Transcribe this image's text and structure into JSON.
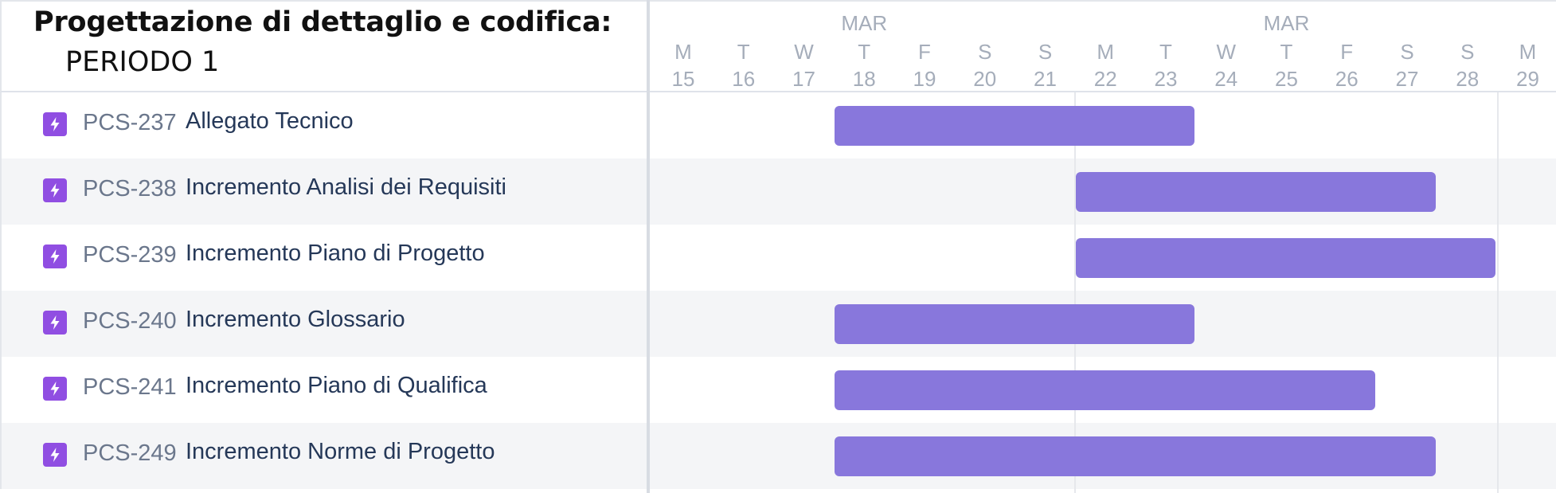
{
  "title": "Progettazione di dettaglio e codifica:",
  "subtitle": "PERIODO 1",
  "accent_color": "#8877dc",
  "icon_color": "#904ee2",
  "timeline": {
    "months": [
      "MAR",
      "MAR"
    ],
    "days": [
      {
        "dow": "M",
        "date": "15"
      },
      {
        "dow": "T",
        "date": "16"
      },
      {
        "dow": "W",
        "date": "17"
      },
      {
        "dow": "T",
        "date": "18"
      },
      {
        "dow": "F",
        "date": "19"
      },
      {
        "dow": "S",
        "date": "20"
      },
      {
        "dow": "S",
        "date": "21"
      },
      {
        "dow": "M",
        "date": "22"
      },
      {
        "dow": "T",
        "date": "23"
      },
      {
        "dow": "W",
        "date": "24"
      },
      {
        "dow": "T",
        "date": "25"
      },
      {
        "dow": "F",
        "date": "26"
      },
      {
        "dow": "S",
        "date": "27"
      },
      {
        "dow": "S",
        "date": "28"
      },
      {
        "dow": "M",
        "date": "29"
      }
    ]
  },
  "tasks": [
    {
      "icon": "lightning-icon",
      "key": "PCS-237",
      "summary": "Allegato Tecnico",
      "start": "18",
      "end": "23"
    },
    {
      "icon": "lightning-icon",
      "key": "PCS-238",
      "summary": "Incremento Analisi dei Requisiti",
      "start": "22",
      "end": "27"
    },
    {
      "icon": "lightning-icon",
      "key": "PCS-239",
      "summary": "Incremento Piano di Progetto",
      "start": "22",
      "end": "28"
    },
    {
      "icon": "lightning-icon",
      "key": "PCS-240",
      "summary": "Incremento Glossario",
      "start": "18",
      "end": "23"
    },
    {
      "icon": "lightning-icon",
      "key": "PCS-241",
      "summary": "Incremento Piano di Qualifica",
      "start": "18",
      "end": "26"
    },
    {
      "icon": "lightning-icon",
      "key": "PCS-249",
      "summary": "Incremento Norme di Progetto",
      "start": "18",
      "end": "27"
    }
  ]
}
